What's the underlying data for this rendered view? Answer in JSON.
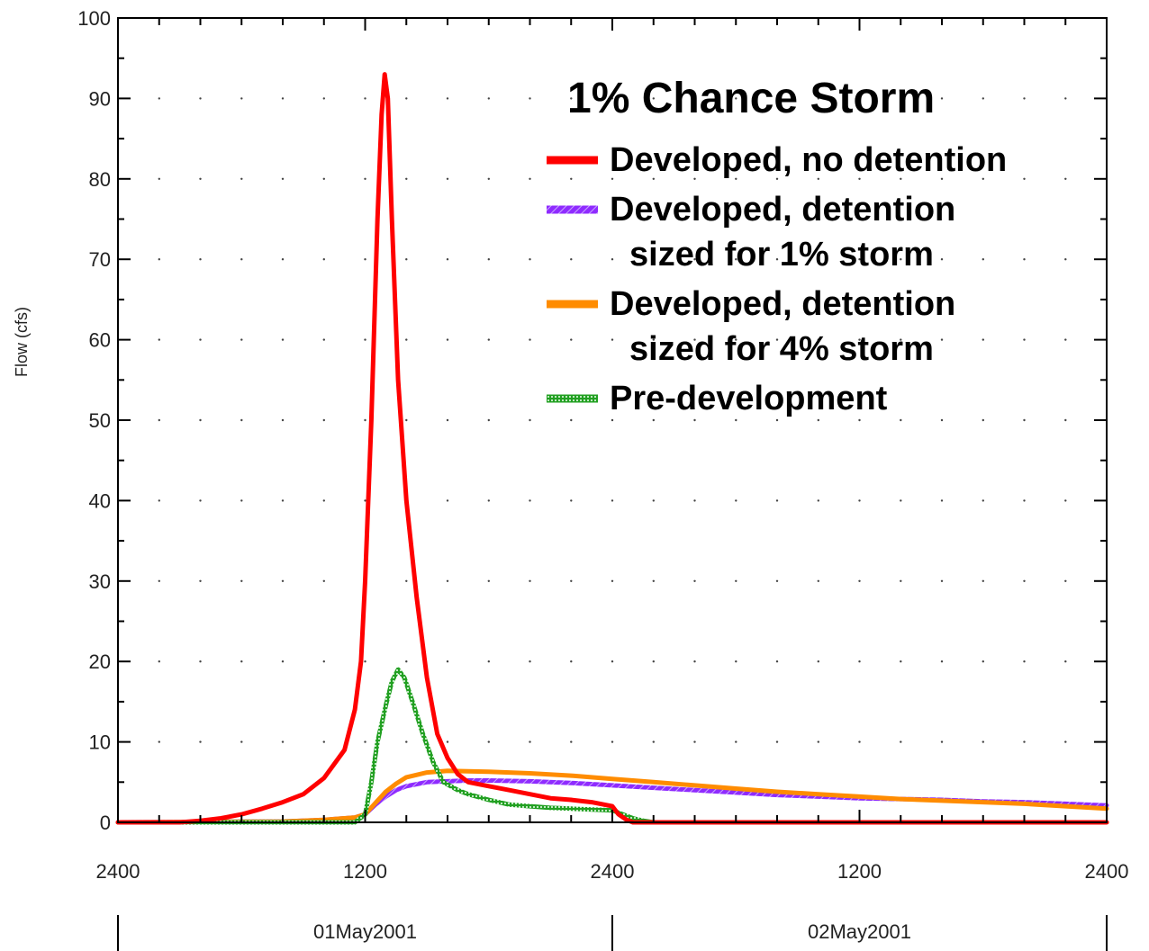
{
  "chart_data": {
    "type": "line",
    "title": "1% Chance Storm",
    "ylabel": "Flow (cfs)",
    "xlabel": "",
    "ylim": [
      0,
      100
    ],
    "yticks": [
      0,
      10,
      20,
      30,
      40,
      50,
      60,
      70,
      80,
      90,
      100
    ],
    "xlim_hours": [
      0,
      48
    ],
    "xtick_labels": [
      {
        "hour": 0,
        "label": "2400"
      },
      {
        "hour": 12,
        "label": "1200"
      },
      {
        "hour": 24,
        "label": "2400"
      },
      {
        "hour": 36,
        "label": "1200"
      },
      {
        "hour": 48,
        "label": "2400"
      }
    ],
    "date_labels": [
      {
        "label": "01May2001",
        "from_hour": 0,
        "to_hour": 24
      },
      {
        "label": "02May2001",
        "from_hour": 24,
        "to_hour": 48
      }
    ],
    "grid": true,
    "legend_position": "top-right",
    "series": [
      {
        "name": "Developed, no detention",
        "name_lines": [
          "Developed, no detention"
        ],
        "color": "#ff0000",
        "style": "solid",
        "points": [
          [
            0,
            0
          ],
          [
            3,
            0
          ],
          [
            4,
            0.2
          ],
          [
            5,
            0.5
          ],
          [
            6,
            1
          ],
          [
            7,
            1.7
          ],
          [
            8,
            2.5
          ],
          [
            9,
            3.5
          ],
          [
            10,
            5.5
          ],
          [
            11,
            9
          ],
          [
            11.5,
            14
          ],
          [
            11.8,
            20
          ],
          [
            12,
            30
          ],
          [
            12.3,
            50
          ],
          [
            12.6,
            75
          ],
          [
            12.8,
            88
          ],
          [
            12.95,
            93
          ],
          [
            13.1,
            90
          ],
          [
            13.3,
            75
          ],
          [
            13.6,
            55
          ],
          [
            14,
            40
          ],
          [
            14.5,
            28
          ],
          [
            15,
            18
          ],
          [
            15.5,
            11
          ],
          [
            16,
            8
          ],
          [
            16.5,
            6
          ],
          [
            17,
            5
          ],
          [
            18,
            4.5
          ],
          [
            19,
            4
          ],
          [
            20,
            3.5
          ],
          [
            21,
            3
          ],
          [
            22,
            2.8
          ],
          [
            23,
            2.5
          ],
          [
            24,
            2
          ],
          [
            24.3,
            1
          ],
          [
            24.7,
            0.3
          ],
          [
            25,
            0
          ],
          [
            48,
            0
          ]
        ]
      },
      {
        "name": "Developed, detention sized for 1% storm",
        "name_lines": [
          "Developed, detention",
          "sized for 1% storm"
        ],
        "color": "#8f2bff",
        "style": "hatched",
        "points": [
          [
            0,
            0
          ],
          [
            8,
            0.1
          ],
          [
            10,
            0.3
          ],
          [
            11.5,
            0.6
          ],
          [
            12,
            1
          ],
          [
            12.5,
            2.2
          ],
          [
            13,
            3.2
          ],
          [
            13.5,
            4
          ],
          [
            14,
            4.5
          ],
          [
            15,
            5
          ],
          [
            16,
            5.1
          ],
          [
            17,
            5.2
          ],
          [
            18,
            5.2
          ],
          [
            20,
            5.1
          ],
          [
            22,
            4.9
          ],
          [
            24,
            4.6
          ],
          [
            26,
            4.3
          ],
          [
            28,
            4.0
          ],
          [
            30,
            3.7
          ],
          [
            32,
            3.4
          ],
          [
            34,
            3.2
          ],
          [
            36,
            3.0
          ],
          [
            38,
            2.9
          ],
          [
            40,
            2.8
          ],
          [
            42,
            2.6
          ],
          [
            44,
            2.5
          ],
          [
            46,
            2.3
          ],
          [
            48,
            2.1
          ]
        ]
      },
      {
        "name": "Developed, detention sized for 4% storm",
        "name_lines": [
          "Developed, detention",
          "sized for 4% storm"
        ],
        "color": "#ff8c00",
        "style": "solid",
        "points": [
          [
            0,
            0
          ],
          [
            8,
            0.1
          ],
          [
            10,
            0.3
          ],
          [
            11.5,
            0.6
          ],
          [
            12,
            1
          ],
          [
            12.5,
            2.4
          ],
          [
            13,
            3.8
          ],
          [
            13.5,
            4.8
          ],
          [
            14,
            5.6
          ],
          [
            15,
            6.2
          ],
          [
            16,
            6.4
          ],
          [
            18,
            6.3
          ],
          [
            20,
            6.1
          ],
          [
            22,
            5.8
          ],
          [
            24,
            5.4
          ],
          [
            26,
            5
          ],
          [
            28,
            4.6
          ],
          [
            30,
            4.2
          ],
          [
            32,
            3.8
          ],
          [
            34,
            3.5
          ],
          [
            36,
            3.2
          ],
          [
            38,
            2.9
          ],
          [
            40,
            2.7
          ],
          [
            42,
            2.5
          ],
          [
            44,
            2.3
          ],
          [
            46,
            2.0
          ],
          [
            48,
            1.7
          ]
        ]
      },
      {
        "name": "Pre-development",
        "name_lines": [
          "Pre-development"
        ],
        "color": "#22a022",
        "style": "dotted",
        "points": [
          [
            0,
            0
          ],
          [
            11.5,
            0
          ],
          [
            12,
            1
          ],
          [
            12.3,
            5
          ],
          [
            12.6,
            10
          ],
          [
            13,
            14.5
          ],
          [
            13.3,
            17.5
          ],
          [
            13.6,
            19
          ],
          [
            13.9,
            18
          ],
          [
            14.3,
            15
          ],
          [
            14.8,
            11
          ],
          [
            15.3,
            7.5
          ],
          [
            15.8,
            5
          ],
          [
            16.5,
            4
          ],
          [
            17,
            3.5
          ],
          [
            18,
            2.8
          ],
          [
            19,
            2.2
          ],
          [
            20,
            2
          ],
          [
            21,
            1.8
          ],
          [
            22,
            1.7
          ],
          [
            23,
            1.6
          ],
          [
            24,
            1.5
          ],
          [
            24.5,
            1
          ],
          [
            25,
            0.5
          ],
          [
            25.5,
            0.2
          ],
          [
            26,
            0
          ],
          [
            48,
            0
          ]
        ]
      }
    ]
  }
}
